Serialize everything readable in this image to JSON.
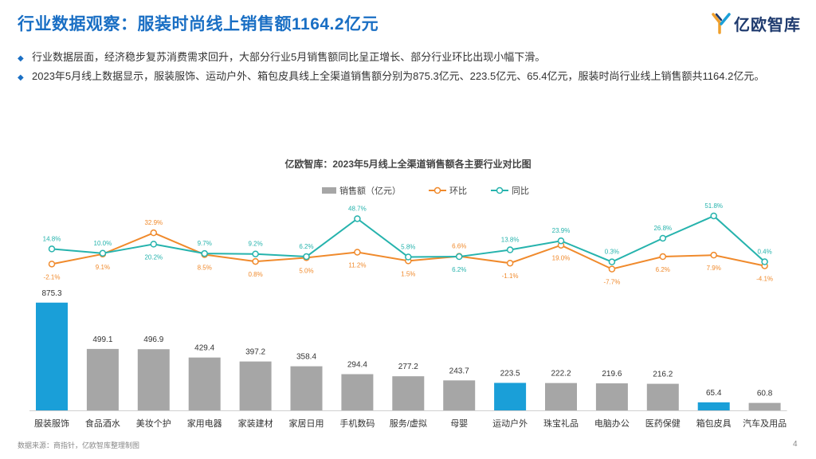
{
  "page": {
    "title": "行业数据观察：服装时尚线上销售额1164.2亿元",
    "logo_text": "亿欧智库",
    "bullets": [
      "行业数据层面，经济稳步复苏消费需求回升，大部分行业5月销售额同比呈正增长、部分行业环比出现小幅下滑。",
      "2023年5月线上数据显示，服装服饰、运动户外、箱包皮具线上全渠道销售额分别为875.3亿元、223.5亿元、65.4亿元，服装时尚行业线上销售额共1164.2亿元。"
    ],
    "footer": "数据来源：商指针，亿欧智库整理制图",
    "page_number": "4"
  },
  "colors": {
    "title": "#1a6fc4",
    "bar_gray": "#a6a6a6",
    "bar_blue": "#1a9fd8",
    "huanbi": "#f08a2c",
    "tongbi": "#26b3ad"
  },
  "chart_data": {
    "type": "bar+line",
    "title": "亿欧智库：2023年5月线上全渠道销售额各主要行业对比图",
    "legend": [
      "销售额（亿元）",
      "环比",
      "同比"
    ],
    "legend_position": "top-center",
    "categories": [
      "服装服饰",
      "食品酒水",
      "美妆个护",
      "家用电器",
      "家装建材",
      "家居日用",
      "手机数码",
      "服务/虚拟",
      "母婴",
      "运动户外",
      "珠宝礼品",
      "电脑办公",
      "医药保健",
      "箱包皮具",
      "汽车及用品"
    ],
    "highlighted": [
      "服装服饰",
      "运动户外",
      "箱包皮具"
    ],
    "series": [
      {
        "name": "销售额（亿元）",
        "type": "bar",
        "values": [
          875.3,
          499.1,
          496.9,
          429.4,
          397.2,
          358.4,
          294.4,
          277.2,
          243.7,
          223.5,
          222.2,
          219.6,
          216.2,
          65.4,
          60.8
        ]
      },
      {
        "name": "环比",
        "type": "line",
        "values": [
          -2.1,
          9.1,
          32.9,
          8.5,
          0.8,
          5.0,
          11.2,
          1.5,
          6.6,
          -1.1,
          19.0,
          -7.7,
          6.2,
          7.9,
          -4.1
        ],
        "labels": [
          "-2.1%",
          "9.1%",
          "32.9%",
          "8.5%",
          "0.8%",
          "5.0%",
          "11.2%",
          "1.5%",
          "6.6%",
          "-1.1%",
          "19.0%",
          "-7.7%",
          "6.2%",
          "7.9%",
          "-4.1%"
        ]
      },
      {
        "name": "同比",
        "type": "line",
        "values": [
          14.8,
          10.0,
          20.2,
          9.7,
          9.2,
          6.2,
          48.7,
          5.8,
          6.2,
          13.8,
          23.9,
          0.3,
          26.8,
          51.8,
          0.4
        ],
        "labels": [
          "14.8%",
          "10.0%",
          "20.2%",
          "9.7%",
          "9.2%",
          "6.2%",
          "48.7%",
          "5.8%",
          "6.2%",
          "13.8%",
          "23.9%",
          "0.3%",
          "26.8%",
          "51.8%",
          "0.4%"
        ]
      }
    ],
    "bar_labels": [
      "875.3",
      "499.1",
      "496.9",
      "429.4",
      "397.2",
      "358.4",
      "294.4",
      "277.2",
      "243.7",
      "223.5",
      "222.2",
      "219.6",
      "216.2",
      "65.4",
      "60.8"
    ]
  }
}
